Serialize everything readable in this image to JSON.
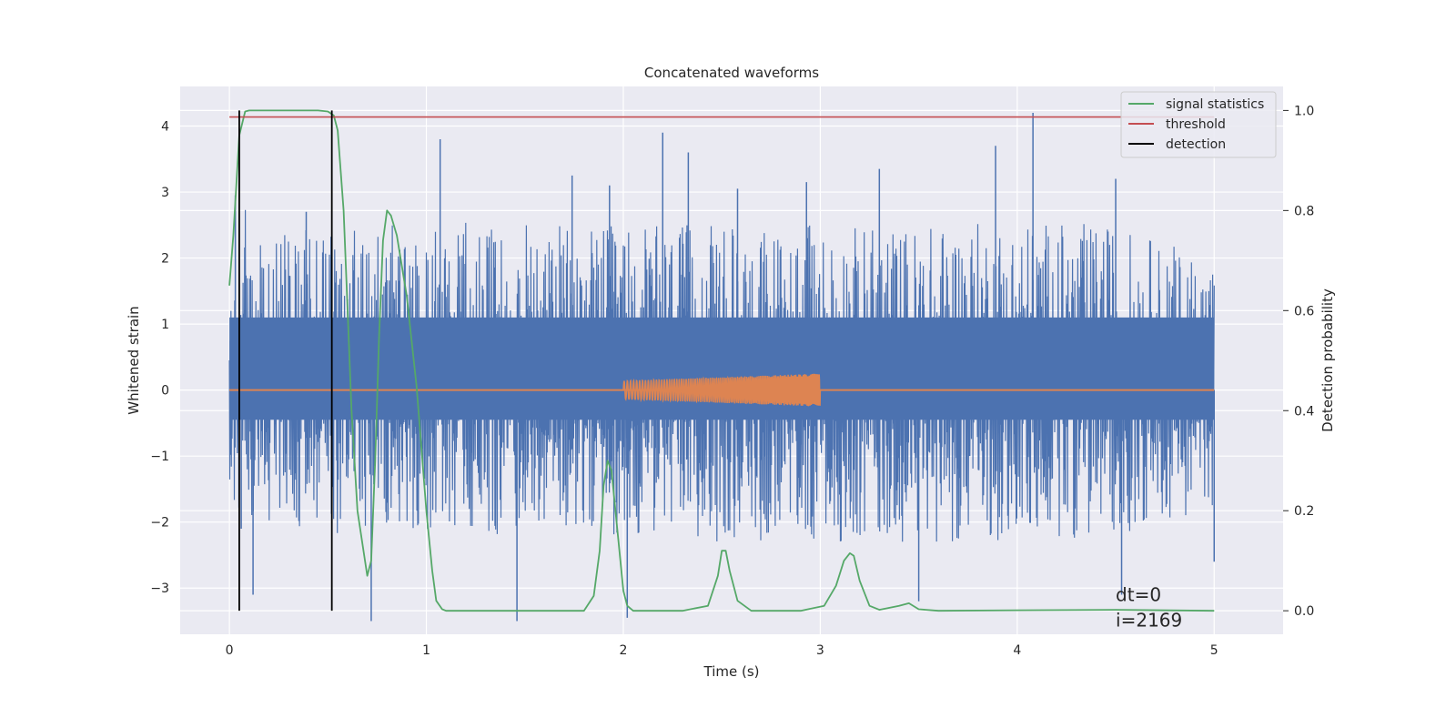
{
  "chart_data": {
    "type": "line",
    "title": "Concatenated waveforms",
    "xlabel": "Time (s)",
    "ylabel": "Whitened strain",
    "ylabel_right": "Detection probability",
    "xlim": [
      -0.25,
      5.35
    ],
    "ylim": [
      -3.7,
      4.6
    ],
    "ylim_right": [
      -0.047,
      1.048
    ],
    "xticks": [
      0,
      1,
      2,
      3,
      4,
      5
    ],
    "xtick_labels": [
      "0",
      "1",
      "2",
      "3",
      "4",
      "5"
    ],
    "yticks": [
      -3,
      -2,
      -1,
      0,
      1,
      2,
      3,
      4
    ],
    "ytick_labels": [
      "−3",
      "−2",
      "−1",
      "0",
      "1",
      "2",
      "3",
      "4"
    ],
    "yticks_right": [
      0.0,
      0.2,
      0.4,
      0.6,
      0.8,
      1.0
    ],
    "ytick_labels_right": [
      "0.0",
      "0.2",
      "0.4",
      "0.6",
      "0.8",
      "1.0"
    ],
    "grid": true,
    "legend_position": "top-right",
    "background": "#eaeaf2",
    "series": [
      {
        "name": "",
        "axis": "left",
        "color": "#4c72b0",
        "kind": "noise",
        "x_range": [
          0,
          5
        ],
        "upper_envelope": [
          [
            0,
            1.1
          ],
          [
            0.03,
            2.9
          ],
          [
            0.2,
            2.6
          ],
          [
            0.5,
            2.4
          ],
          [
            1.0,
            2.6
          ],
          [
            1.5,
            2.5
          ],
          [
            2.0,
            2.5
          ],
          [
            2.5,
            2.5
          ],
          [
            3.0,
            2.5
          ],
          [
            3.5,
            2.5
          ],
          [
            4.0,
            2.6
          ],
          [
            4.5,
            2.5
          ],
          [
            5.0,
            2.0
          ]
        ],
        "lower_envelope": [
          [
            0,
            -1.9
          ],
          [
            0.5,
            -2.2
          ],
          [
            1.0,
            -2.2
          ],
          [
            1.5,
            -2.2
          ],
          [
            2.0,
            -2.2
          ],
          [
            2.5,
            -2.3
          ],
          [
            3.0,
            -2.3
          ],
          [
            3.5,
            -2.3
          ],
          [
            4.0,
            -2.3
          ],
          [
            4.5,
            -2.2
          ],
          [
            5.0,
            -1.8
          ]
        ],
        "spikes": [
          [
            0.03,
            2.95
          ],
          [
            0.06,
            -2.1
          ],
          [
            0.12,
            -3.1
          ],
          [
            0.39,
            2.7
          ],
          [
            0.72,
            -3.5
          ],
          [
            1.07,
            3.8
          ],
          [
            1.46,
            -3.5
          ],
          [
            1.74,
            3.25
          ],
          [
            1.93,
            3.1
          ],
          [
            2.02,
            -3.45
          ],
          [
            2.2,
            3.9
          ],
          [
            2.33,
            3.6
          ],
          [
            2.58,
            3.05
          ],
          [
            2.93,
            3.15
          ],
          [
            3.3,
            3.35
          ],
          [
            3.5,
            -3.2
          ],
          [
            3.89,
            3.7
          ],
          [
            4.08,
            4.2
          ],
          [
            4.5,
            3.2
          ],
          [
            4.53,
            -3.1
          ],
          [
            5.0,
            -2.6
          ]
        ]
      },
      {
        "name": "",
        "axis": "left",
        "color": "#dd8452",
        "kind": "chirp",
        "x_range": [
          2.0,
          3.0
        ],
        "amplitude": [
          0.14,
          0.25
        ]
      },
      {
        "name": "signal statistics",
        "axis": "right",
        "color": "#55a868",
        "x": [
          0.0,
          0.02,
          0.05,
          0.08,
          0.1,
          0.12,
          0.2,
          0.35,
          0.45,
          0.5,
          0.53,
          0.55,
          0.58,
          0.6,
          0.62,
          0.65,
          0.7,
          0.72,
          0.74,
          0.76,
          0.78,
          0.8,
          0.82,
          0.85,
          0.9,
          0.95,
          0.98,
          1.0,
          1.03,
          1.05,
          1.08,
          1.1,
          1.2,
          1.5,
          1.8,
          1.85,
          1.88,
          1.9,
          1.92,
          1.94,
          1.97,
          2.0,
          2.02,
          2.05,
          2.3,
          2.43,
          2.48,
          2.5,
          2.52,
          2.54,
          2.58,
          2.65,
          2.9,
          3.02,
          3.08,
          3.12,
          3.15,
          3.17,
          3.2,
          3.25,
          3.3,
          3.4,
          3.45,
          3.5,
          3.6,
          4.0,
          4.5,
          5.0
        ],
        "y": [
          0.65,
          0.75,
          0.95,
          0.998,
          1.0,
          1.0,
          1.0,
          1.0,
          1.0,
          0.998,
          0.99,
          0.96,
          0.8,
          0.6,
          0.4,
          0.2,
          0.07,
          0.1,
          0.3,
          0.55,
          0.74,
          0.8,
          0.79,
          0.75,
          0.63,
          0.45,
          0.3,
          0.2,
          0.08,
          0.02,
          0.003,
          0.0,
          0.0,
          0.0,
          0.0,
          0.03,
          0.12,
          0.25,
          0.3,
          0.28,
          0.16,
          0.04,
          0.01,
          0.0,
          0.0,
          0.01,
          0.07,
          0.12,
          0.12,
          0.08,
          0.02,
          0.0,
          0.0,
          0.01,
          0.05,
          0.1,
          0.115,
          0.11,
          0.06,
          0.01,
          0.002,
          0.01,
          0.015,
          0.003,
          0.0,
          0.001,
          0.002,
          0.0
        ]
      },
      {
        "name": "threshold",
        "axis": "right",
        "color": "#c44e52",
        "x": [
          0,
          5
        ],
        "y": [
          0.987,
          0.987
        ]
      },
      {
        "name": "detection",
        "axis": "right",
        "color": "#000000",
        "vlines": [
          0.05,
          0.52
        ],
        "y_span": [
          0.0,
          1.0
        ]
      }
    ],
    "annotations": [
      "dt=0",
      "i=2169"
    ],
    "annotation_position": [
      4.5,
      -3.2
    ]
  }
}
